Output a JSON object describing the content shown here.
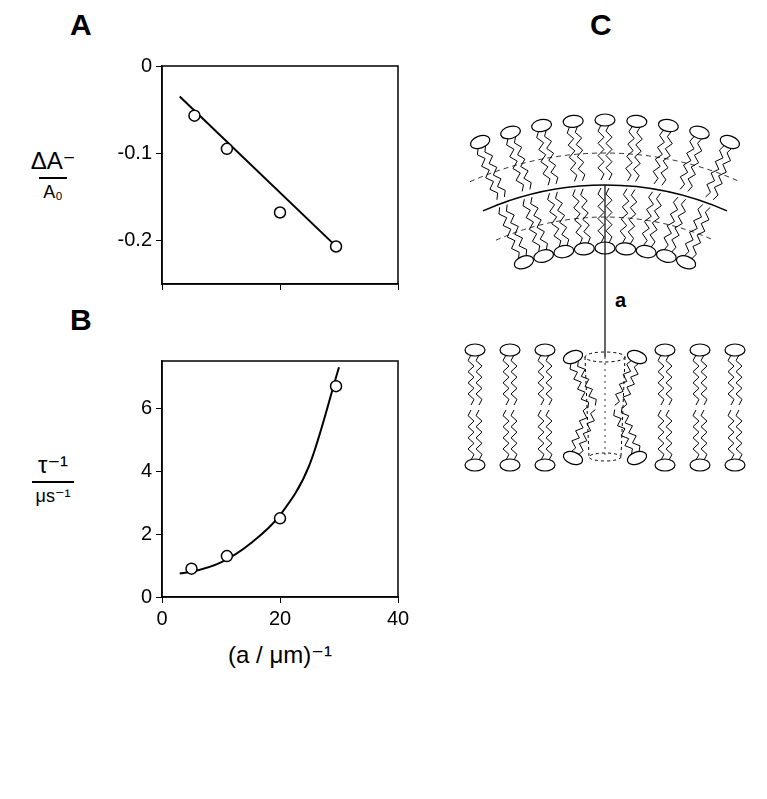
{
  "chart_data": [
    {
      "panel": "A",
      "type": "scatter",
      "y_label": {
        "numerator": "ΔA⁻",
        "denominator": "A₀"
      },
      "xlim": [
        0,
        40
      ],
      "xticks": [
        0,
        20,
        40
      ],
      "ylim": [
        -0.25,
        0
      ],
      "yticks": [
        0,
        -0.1,
        -0.2
      ],
      "grid": false,
      "tick_labels": "y",
      "series": [
        {
          "type": "scatter",
          "marker": "circle",
          "color": "#000000",
          "x": [
            5.5,
            11,
            20,
            29.5
          ],
          "values": [
            -0.057,
            -0.095,
            -0.168,
            -0.207
          ]
        },
        {
          "type": "line",
          "line_style": "solid",
          "color": "#000000",
          "x": [
            3,
            30
          ],
          "values": [
            -0.035,
            -0.21
          ]
        }
      ]
    },
    {
      "panel": "B",
      "type": "scatter",
      "y_label": {
        "numerator": "τ⁻¹",
        "denominator": "μs⁻¹"
      },
      "x_label": "(a / μm)⁻¹",
      "xlim": [
        0,
        40
      ],
      "xticks": [
        0,
        20,
        40
      ],
      "ylim": [
        0,
        7.5
      ],
      "yticks": [
        0,
        2,
        4,
        6
      ],
      "grid": false,
      "series": [
        {
          "type": "scatter",
          "marker": "circle",
          "color": "#000000",
          "x": [
            5,
            11,
            20,
            29.5
          ],
          "values": [
            0.9,
            1.3,
            2.5,
            6.7
          ]
        },
        {
          "type": "line",
          "line_style": "solid",
          "color": "#000000",
          "x": [
            3,
            5,
            10,
            15,
            20,
            25,
            30
          ],
          "values": [
            0.75,
            0.8,
            1.1,
            1.7,
            2.6,
            4.2,
            7.3
          ]
        }
      ]
    }
  ],
  "diagram": {
    "panel": "C",
    "label": "a"
  }
}
